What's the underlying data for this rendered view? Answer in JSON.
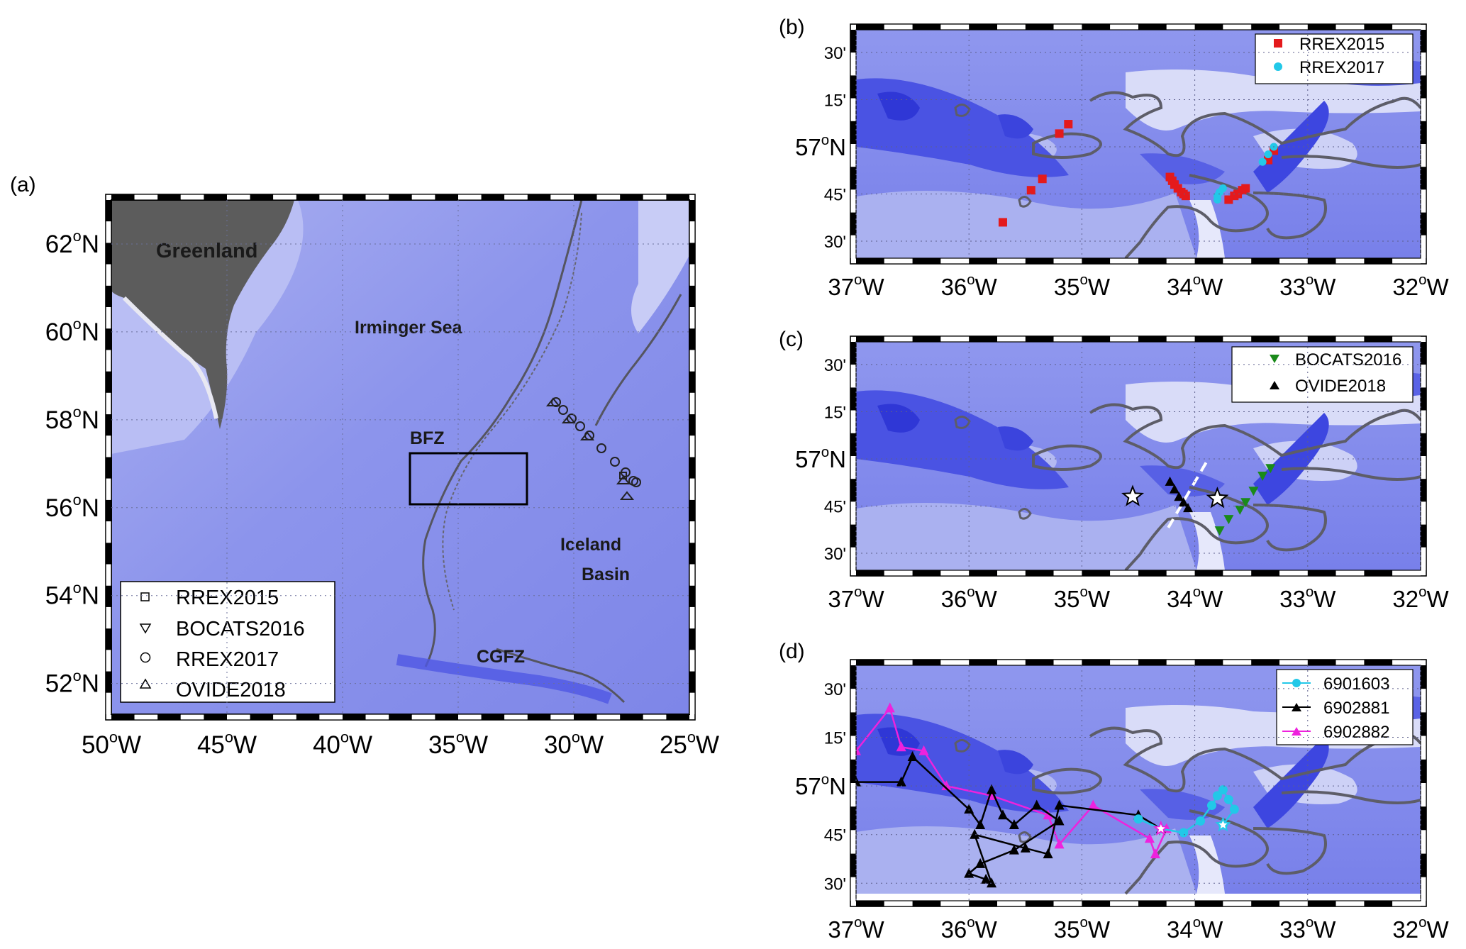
{
  "panel_a": {
    "label": "(a)",
    "lon_ticks": [
      "50",
      "45",
      "40",
      "35",
      "30",
      "25"
    ],
    "lat_ticks": [
      "62",
      "60",
      "58",
      "56",
      "54",
      "52"
    ],
    "lon_suffix": "W",
    "lat_suffix": "N",
    "degree_symbol": "o",
    "place_names": {
      "greenland": "Greenland",
      "irminger": "Irminger Sea",
      "bfz": "BFZ",
      "iceland_1": "Iceland",
      "iceland_2": "Basin",
      "cgfz": "CGFZ"
    },
    "legend": [
      {
        "name": "RREX2015",
        "symbol": "square"
      },
      {
        "name": "BOCATS2016",
        "symbol": "triangle-down"
      },
      {
        "name": "RREX2017",
        "symbol": "circle"
      },
      {
        "name": "OVIDE2018",
        "symbol": "triangle-up"
      }
    ]
  },
  "panel_b": {
    "label": "(b)",
    "legend": [
      {
        "name": "RREX2015",
        "symbol": "square",
        "color": "#e41a1c"
      },
      {
        "name": "RREX2017",
        "symbol": "circle",
        "color": "#22c8e8"
      }
    ]
  },
  "panel_c": {
    "label": "(c)",
    "legend": [
      {
        "name": "BOCATS2016",
        "symbol": "triangle-down",
        "color": "#1a8a1a"
      },
      {
        "name": "OVIDE2018",
        "symbol": "triangle-up",
        "color": "#000000"
      }
    ]
  },
  "panel_d": {
    "label": "(d)",
    "legend": [
      {
        "name": "6901603",
        "symbol": "circle",
        "color": "#22c8e8"
      },
      {
        "name": "6902881",
        "symbol": "triangle-up",
        "color": "#000000"
      },
      {
        "name": "6902882",
        "symbol": "triangle-up",
        "color": "#ee22dd"
      }
    ]
  },
  "zoom_ticks": {
    "lon": [
      "37",
      "36",
      "35",
      "34",
      "33",
      "32"
    ],
    "lat_minor": [
      "30'",
      "15'",
      "57",
      "45'",
      "30'"
    ],
    "lat_main_suffix": "N",
    "lon_suffix": "W",
    "degree_symbol": "o"
  },
  "colors": {
    "ocean_deep": "#3d46e2",
    "ocean_mid": "#6f78ea",
    "ocean_light": "#c9cdf6",
    "ridge_contour": "#5a5a66",
    "land": "#5c5c5c"
  },
  "chart_data": {
    "type": "scatter",
    "stations": {
      "RREX2015": {
        "lon": [
          -35.7,
          -35.45,
          -35.35,
          -35.2,
          -35.12,
          -34.22,
          -34.2,
          -34.18,
          -34.15,
          -34.12,
          -34.1,
          -34.08,
          -33.7,
          -33.65,
          -33.62,
          -33.58,
          -33.55,
          -33.35,
          -33.3
        ],
        "lat": [
          56.6,
          56.77,
          56.83,
          57.07,
          57.12,
          56.84,
          56.82,
          56.8,
          56.78,
          56.76,
          56.75,
          56.74,
          56.72,
          56.74,
          56.75,
          56.77,
          56.78,
          56.93,
          56.98
        ]
      },
      "RREX2017": {
        "lon": [
          -33.8,
          -33.8,
          -33.78,
          -33.75,
          -33.4,
          -33.35,
          -33.3
        ],
        "lat": [
          56.72,
          56.74,
          56.76,
          56.78,
          56.92,
          56.96,
          57.0
        ]
      },
      "BOCATS2016": {
        "lon": [
          -33.78,
          -33.7,
          -33.6,
          -33.55,
          -33.48,
          -33.4,
          -33.33
        ],
        "lat": [
          56.62,
          56.68,
          56.73,
          56.77,
          56.83,
          56.91,
          56.95
        ]
      },
      "OVIDE2018": {
        "lon": [
          -34.22,
          -34.18,
          -34.14,
          -34.1,
          -34.06
        ],
        "lat": [
          56.88,
          56.84,
          56.8,
          56.77,
          56.74
        ]
      }
    },
    "floats": {
      "6901603": {
        "lon": [
          -34.5,
          -34.3,
          -34.1,
          -33.95,
          -33.85,
          -33.8,
          -33.75,
          -33.7,
          -33.65,
          -33.75
        ],
        "lat": [
          56.83,
          56.78,
          56.76,
          56.82,
          56.9,
          56.95,
          56.98,
          56.93,
          56.88,
          56.8
        ]
      },
      "6902881": {
        "lon": [
          -37.0,
          -36.6,
          -36.5,
          -36.0,
          -35.9,
          -35.8,
          -35.7,
          -35.6,
          -35.4,
          -35.2,
          -35.6,
          -35.9,
          -36.0,
          -35.85,
          -35.8,
          -35.95,
          -35.5,
          -35.3,
          -35.2,
          -34.5,
          -34.3
        ],
        "lat": [
          57.02,
          57.02,
          57.15,
          56.88,
          56.8,
          56.98,
          56.85,
          56.8,
          56.9,
          56.82,
          56.67,
          56.6,
          56.55,
          56.52,
          56.5,
          56.75,
          56.68,
          56.65,
          56.9,
          56.85,
          56.78
        ]
      },
      "6902882": {
        "lon": [
          -37.0,
          -36.7,
          -36.6,
          -36.4,
          -36.2,
          -35.8,
          -35.3,
          -35.2,
          -34.9,
          -34.4,
          -34.35,
          -34.25
        ],
        "lat": [
          57.18,
          57.4,
          57.2,
          57.18,
          57.0,
          56.95,
          56.85,
          56.7,
          56.9,
          56.73,
          56.65,
          56.78
        ]
      }
    },
    "stars_panel_c": {
      "lon": [
        -34.55,
        -33.8
      ],
      "lat": [
        56.8,
        56.79
      ]
    },
    "dashed_section_panel_c": {
      "lon": [
        -33.9,
        -34.25
      ],
      "lat": [
        56.98,
        56.62
      ]
    }
  }
}
